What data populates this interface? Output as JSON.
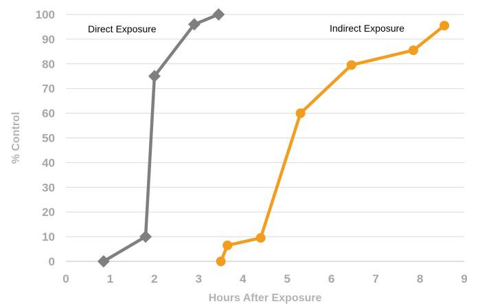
{
  "chart_data": {
    "type": "line",
    "xlabel": "Hours After Exposure",
    "ylabel": "% Control",
    "xlim": [
      0,
      9
    ],
    "ylim": [
      0,
      100
    ],
    "x_ticks": [
      "0",
      "1",
      "2",
      "3",
      "4",
      "5",
      "6",
      "7",
      "8",
      "9"
    ],
    "y_ticks": [
      "0",
      "10",
      "20",
      "30",
      "40",
      "50",
      "60",
      "70",
      "80",
      "90",
      "100"
    ],
    "grid": "horizontal",
    "series": [
      {
        "name": "Direct Exposure",
        "color": "#7f7f7f",
        "marker": "diamond",
        "points": [
          {
            "x": 0.85,
            "y": 0
          },
          {
            "x": 1.8,
            "y": 10
          },
          {
            "x": 2.0,
            "y": 75
          },
          {
            "x": 2.9,
            "y": 96
          },
          {
            "x": 3.45,
            "y": 100
          }
        ]
      },
      {
        "name": "Indirect Exposure",
        "color": "#f39c1e",
        "marker": "circle",
        "points": [
          {
            "x": 3.5,
            "y": 0
          },
          {
            "x": 3.65,
            "y": 6.5
          },
          {
            "x": 4.4,
            "y": 9.5
          },
          {
            "x": 5.3,
            "y": 60
          },
          {
            "x": 6.45,
            "y": 79.5
          },
          {
            "x": 7.85,
            "y": 85.5
          },
          {
            "x": 8.55,
            "y": 95.5
          }
        ]
      }
    ],
    "annotations": [
      "Direct Exposure",
      "Indirect Exposure"
    ]
  }
}
